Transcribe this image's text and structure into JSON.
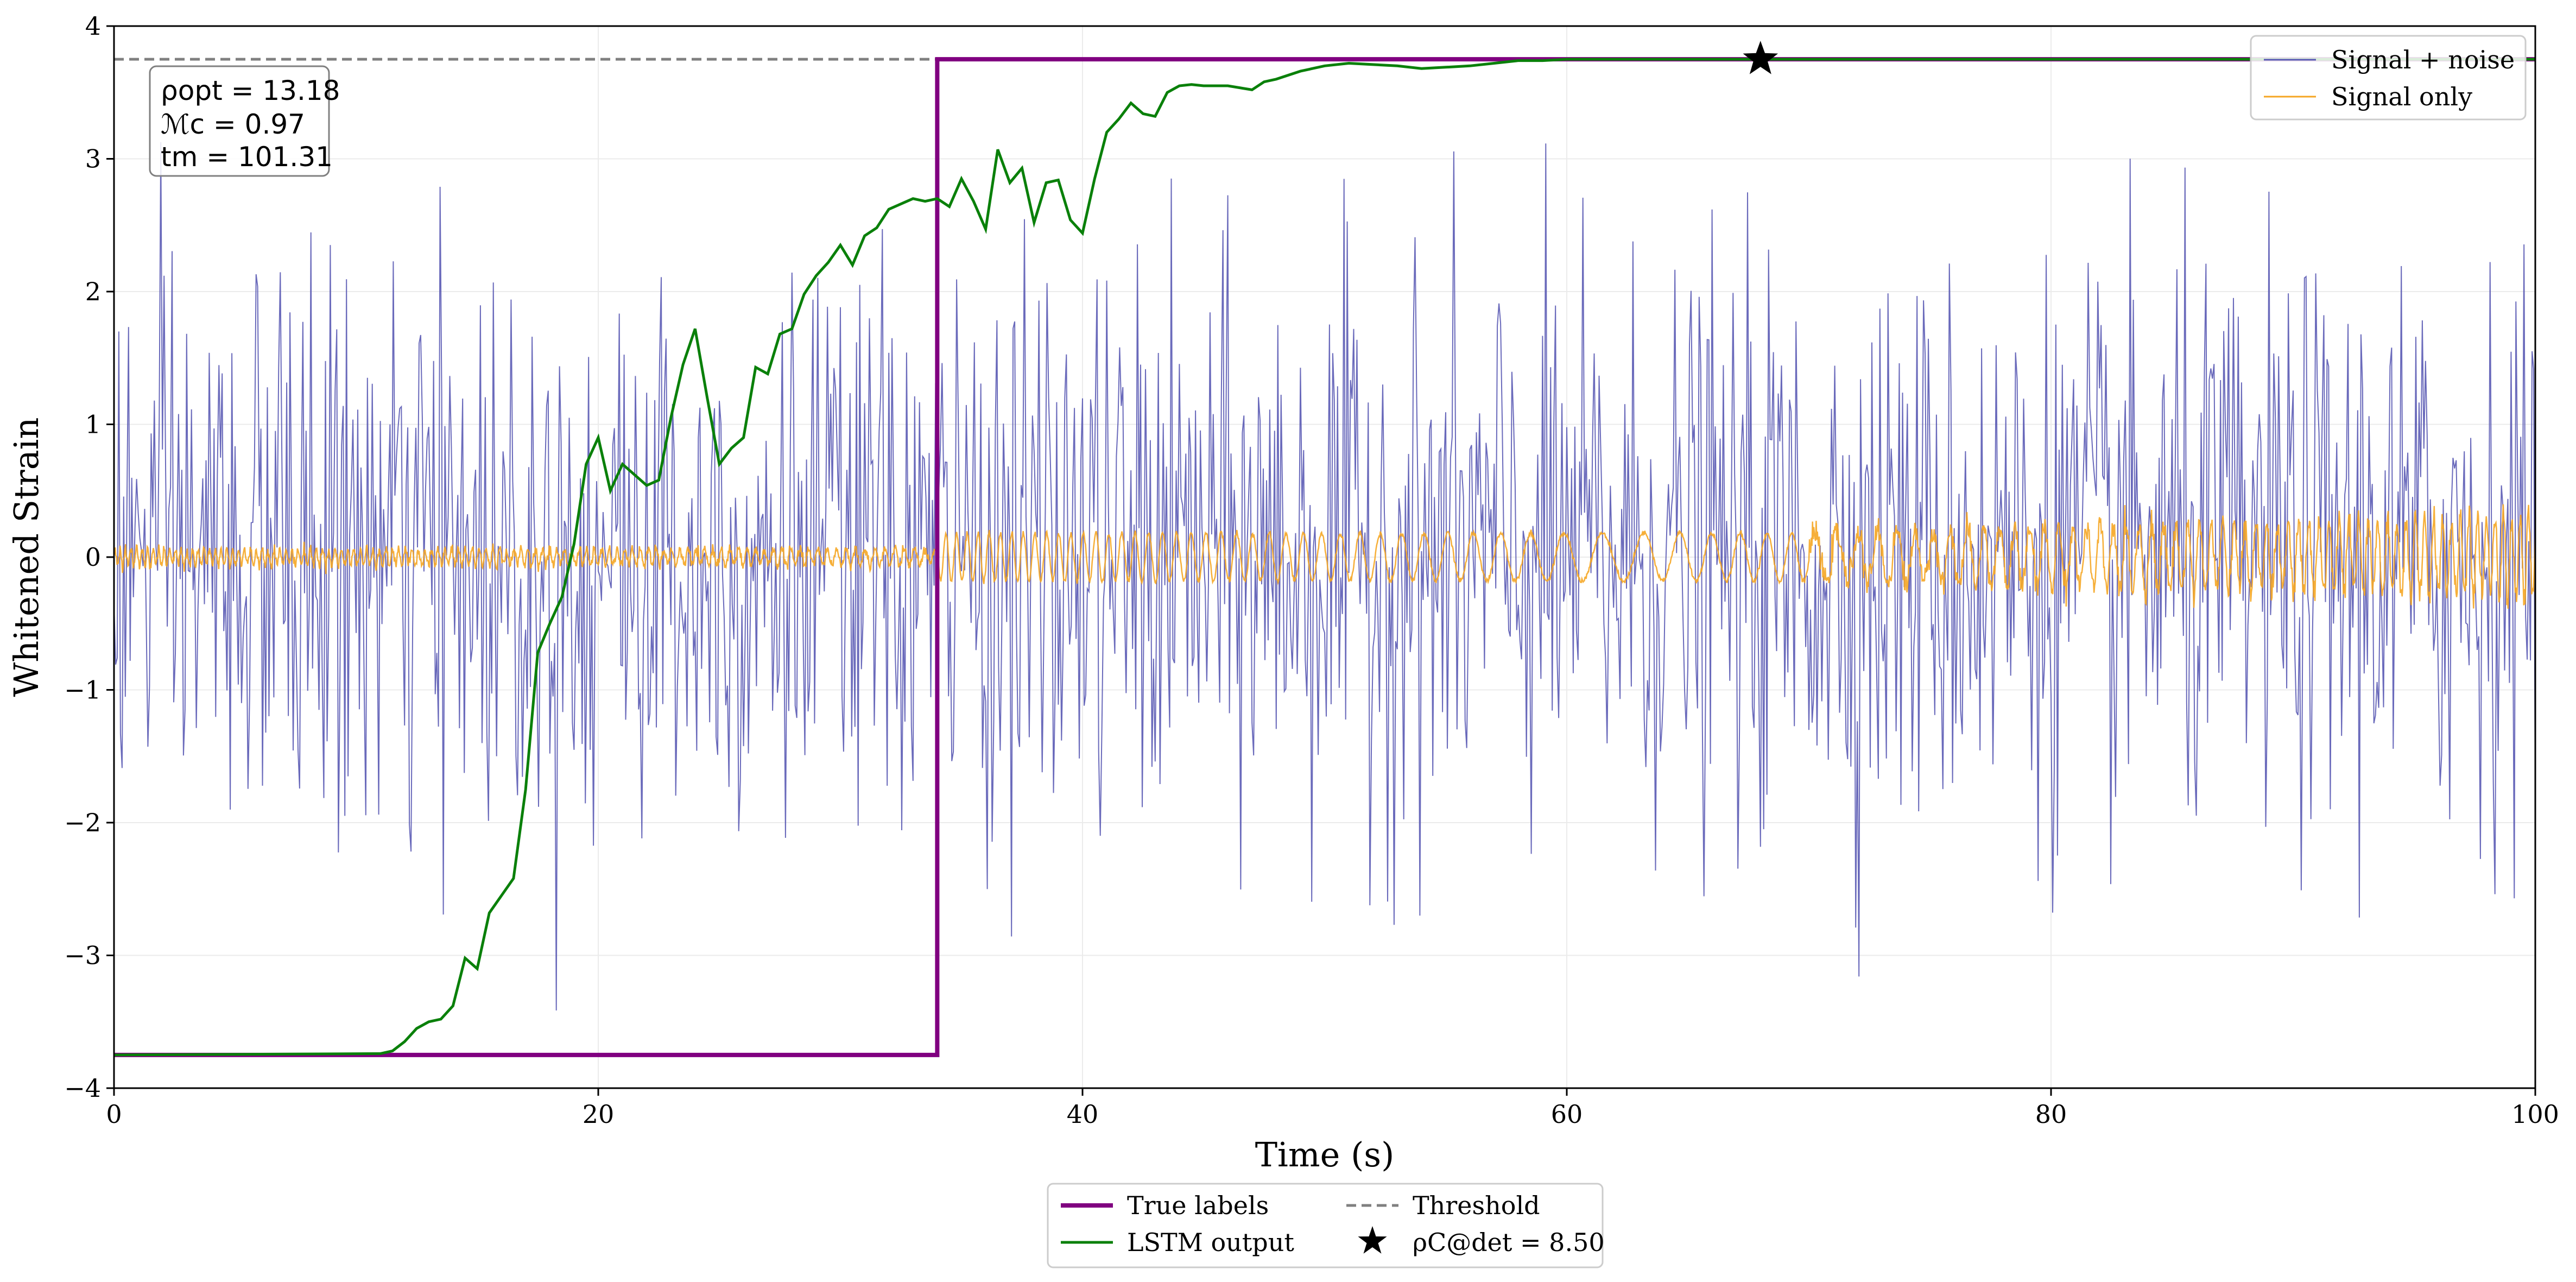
{
  "chart_data": {
    "type": "line",
    "title": "",
    "xlabel": "Time (s)",
    "ylabel": "Whitened Strain",
    "xlim": [
      0,
      100
    ],
    "ylim": [
      -4,
      4
    ],
    "grid": true,
    "x_ticks": [
      0,
      20,
      40,
      60,
      80,
      100
    ],
    "x_tick_labels": [
      "0",
      "20",
      "40",
      "60",
      "80",
      "100"
    ],
    "y_ticks": [
      -4,
      -3,
      -2,
      -1,
      0,
      1,
      2,
      3,
      4
    ],
    "y_tick_labels": [
      "−4",
      "−3",
      "−2",
      "−1",
      "0",
      "1",
      "2",
      "3",
      "4"
    ],
    "series": [
      {
        "name": "Signal + noise",
        "color": "#5a5ab4",
        "style": "thin-line",
        "description_values": {
          "mean": 0,
          "approx_std": 1.05,
          "x_start": 0,
          "x_end": 100,
          "samples": 1500
        }
      },
      {
        "name": "Signal only",
        "color": "#f5a623",
        "style": "thin-line",
        "description_values": {
          "amplitude_before_34": 0.06,
          "amplitude_after_34": 0.18,
          "amplitude_end": 0.3,
          "chirp_slowest_near": 62
        }
      },
      {
        "name": "True labels",
        "color": "#800080",
        "style": "step",
        "x": [
          0,
          34,
          34,
          100
        ],
        "values": [
          -3.75,
          -3.75,
          3.75,
          3.75
        ]
      },
      {
        "name": "LSTM output",
        "color": "#0a800a",
        "style": "line",
        "x": [
          0,
          11,
          11.5,
          12,
          12.5,
          13,
          13.5,
          14,
          14.5,
          15,
          15.5,
          16,
          16.5,
          17,
          17.5,
          18,
          18.5,
          19,
          19.5,
          20,
          20.5,
          21,
          21.5,
          22,
          22.5,
          23,
          23.5,
          24,
          24.5,
          25,
          25.5,
          26,
          26.5,
          27,
          27.5,
          28,
          28.5,
          29,
          29.5,
          30,
          30.5,
          31,
          31.5,
          32,
          32.5,
          33,
          33.5,
          34,
          34.5,
          35,
          35.5,
          36,
          36.5,
          37,
          37.5,
          38,
          38.5,
          39,
          39.5,
          40,
          40.5,
          41,
          41.5,
          42,
          42.5,
          43,
          43.5,
          44,
          44.5,
          45,
          46,
          47,
          47.5,
          48,
          49,
          50,
          51,
          52,
          53,
          54,
          55,
          56,
          57,
          58,
          59,
          60,
          62,
          64,
          66,
          70,
          80,
          90,
          100
        ],
        "values": [
          -3.75,
          -3.74,
          -3.72,
          -3.65,
          -3.55,
          -3.5,
          -3.48,
          -3.38,
          -3.02,
          -3.1,
          -2.68,
          -2.55,
          -2.42,
          -1.75,
          -0.72,
          -0.5,
          -0.3,
          0.1,
          0.7,
          0.9,
          0.5,
          0.7,
          0.62,
          0.54,
          0.58,
          1.05,
          1.45,
          1.72,
          1.2,
          0.7,
          0.82,
          0.9,
          1.43,
          1.38,
          1.68,
          1.72,
          1.98,
          2.12,
          2.22,
          2.35,
          2.2,
          2.42,
          2.48,
          2.62,
          2.66,
          2.7,
          2.68,
          2.7,
          2.64,
          2.85,
          2.68,
          2.47,
          3.07,
          2.82,
          2.93,
          2.52,
          2.82,
          2.84,
          2.54,
          2.44,
          2.85,
          3.2,
          3.3,
          3.42,
          3.34,
          3.32,
          3.5,
          3.55,
          3.56,
          3.55,
          3.55,
          3.52,
          3.58,
          3.6,
          3.66,
          3.7,
          3.72,
          3.71,
          3.7,
          3.68,
          3.69,
          3.7,
          3.72,
          3.74,
          3.74,
          3.75,
          3.75,
          3.75,
          3.75,
          3.75,
          3.75,
          3.75,
          3.75
        ]
      },
      {
        "name": "Threshold",
        "color": "#808080",
        "style": "dashed",
        "value": 3.75
      }
    ],
    "markers": [
      {
        "name": "ρC@det = 8.50",
        "x": 68,
        "y": 3.75,
        "symbol": "star",
        "color": "#000000"
      }
    ],
    "legend_upper": {
      "placement": "top-right",
      "entries": [
        {
          "label": "Signal + noise",
          "color": "#5a5ab4"
        },
        {
          "label": "Signal only",
          "color": "#f5a623"
        }
      ]
    },
    "legend_lower": {
      "placement": "bottom-center",
      "entries": [
        {
          "label": "True labels",
          "color": "#800080",
          "style": "solid-thick"
        },
        {
          "label": "Threshold",
          "color": "#808080",
          "style": "dashed"
        },
        {
          "label": "LSTM output",
          "color": "#0a800a",
          "style": "solid"
        },
        {
          "label": "ρC@det = 8.50",
          "color": "#000000",
          "style": "star"
        }
      ]
    },
    "info_box": {
      "placement": "top-left",
      "lines": [
        "ρopt = 13.18",
        "ℳc = 0.97",
        "tm = 101.31"
      ]
    }
  }
}
